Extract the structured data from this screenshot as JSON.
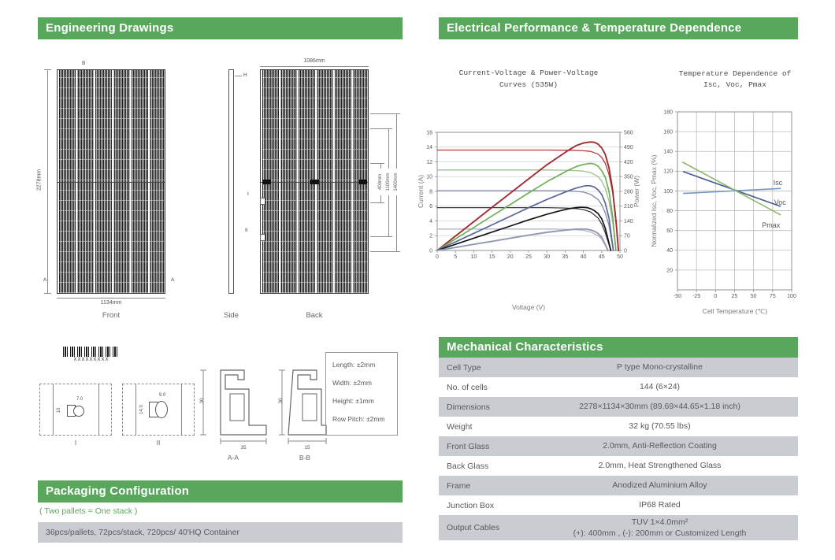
{
  "colors": {
    "brand_green": "#58a75c",
    "row_gray": "#c9cdd2",
    "text_gray": "#58595b"
  },
  "headers": {
    "engineering": "Engineering Drawings",
    "electrical": "Electrical Performance & Temperature Dependence",
    "mechanical": "Mechanical Characteristics"
  },
  "drawings": {
    "front": {
      "label": "Front",
      "height": "2278mm",
      "width": "1134mm",
      "marker_top": "B",
      "marker_bl": "A",
      "marker_br": "A"
    },
    "side": {
      "label": "Side",
      "marker": "H"
    },
    "back": {
      "label": "Back",
      "width": "1086mm",
      "dim1": "400mm",
      "dim2": "1100mm",
      "dim3": "1400mm",
      "marker1": "I",
      "marker2": "II"
    },
    "detail1": {
      "label": "I",
      "dim_w": "7.0",
      "dim_h": "10"
    },
    "detail2": {
      "label": "II",
      "dim_w": "9.0",
      "dim_h": "14.0"
    },
    "section_aa": {
      "label": "A-A",
      "height": "30",
      "width": "35"
    },
    "section_bb": {
      "label": "B-B",
      "height": "30",
      "width": "15"
    },
    "barcode_text": "XXXXXXXXX",
    "tolerances": {
      "l1": "Length: ±2mm",
      "l2": "Width: ±2mm",
      "l3": "Height: ±1mm",
      "l4": "Row Pitch: ±2mm"
    }
  },
  "packaging": {
    "title": "Packaging Configuration",
    "note": "( Two pallets = One stack )",
    "row": "36pcs/pallets, 72pcs/stack, 720pcs/ 40'HQ Container"
  },
  "mechanical_table": {
    "rows": [
      {
        "label": "Cell Type",
        "value": "P type Mono-crystalline"
      },
      {
        "label": "No. of cells",
        "value": "144 (6×24)"
      },
      {
        "label": "Dimensions",
        "value": "2278×1134×30mm (89.69×44.65×1.18 inch)"
      },
      {
        "label": "Weight",
        "value": "32 kg (70.55 lbs)"
      },
      {
        "label": "Front Glass",
        "value": "2.0mm, Anti-Reflection Coating"
      },
      {
        "label": "Back Glass",
        "value": "2.0mm, Heat Strengthened Glass"
      },
      {
        "label": "Frame",
        "value": "Anodized Aluminium Alloy"
      },
      {
        "label": "Junction Box",
        "value": "IP68 Rated"
      },
      {
        "label": "Output Cables",
        "value": "TUV  1×4.0mm²",
        "value2": "(+): 400mm , (-): 200mm or Customized Length"
      }
    ]
  },
  "chart_data": [
    {
      "type": "line",
      "title": "Current-Voltage & Power-Voltage Curves (535W)",
      "title_lines": [
        "Current-Voltage & Power-Voltage",
        "Curves (535W)"
      ],
      "xlabel": "Voltage (V)",
      "ylabel": "Current (A)",
      "y2label": "Power (W)",
      "xlim": [
        0,
        50
      ],
      "ylim": [
        0,
        16
      ],
      "y2lim": [
        0,
        560
      ],
      "xticks": [
        0,
        5,
        10,
        15,
        20,
        25,
        30,
        35,
        40,
        45,
        50
      ],
      "yticks": [
        0,
        2,
        4,
        6,
        8,
        10,
        12,
        14,
        16
      ],
      "y2ticks": [
        0,
        70,
        140,
        210,
        280,
        350,
        420,
        490,
        560
      ],
      "grid": "horizontal",
      "series": [
        {
          "name": "I-V 1",
          "color": "#b8393b",
          "width": 1.3,
          "points": [
            [
              0,
              13.6
            ],
            [
              10,
              13.6
            ],
            [
              20,
              13.6
            ],
            [
              30,
              13.6
            ],
            [
              35,
              13.58
            ],
            [
              38,
              13.55
            ],
            [
              40,
              13.5
            ],
            [
              42,
              13.42
            ],
            [
              44,
              13.05
            ],
            [
              45,
              12.6
            ],
            [
              46,
              11.8
            ],
            [
              47,
              10.3
            ],
            [
              48,
              7.9
            ],
            [
              48.7,
              5.3
            ],
            [
              49.2,
              2.4
            ],
            [
              49.6,
              0
            ]
          ]
        },
        {
          "name": "I-V 2",
          "color": "#9dbe8d",
          "width": 1.3,
          "points": [
            [
              0,
              10.9
            ],
            [
              10,
              10.9
            ],
            [
              20,
              10.9
            ],
            [
              30,
              10.9
            ],
            [
              35,
              10.87
            ],
            [
              38,
              10.82
            ],
            [
              40,
              10.75
            ],
            [
              42,
              10.55
            ],
            [
              44,
              10.0
            ],
            [
              45,
              9.4
            ],
            [
              46,
              8.4
            ],
            [
              47,
              6.7
            ],
            [
              48,
              3.9
            ],
            [
              48.9,
              0
            ]
          ]
        },
        {
          "name": "I-V 3",
          "color": "#7f88ab",
          "width": 1.3,
          "points": [
            [
              0,
              8.1
            ],
            [
              10,
              8.1
            ],
            [
              20,
              8.1
            ],
            [
              30,
              8.1
            ],
            [
              35,
              8.07
            ],
            [
              38,
              8.0
            ],
            [
              40,
              7.9
            ],
            [
              42,
              7.6
            ],
            [
              44,
              6.9
            ],
            [
              45,
              6.2
            ],
            [
              46,
              5.1
            ],
            [
              47,
              3.4
            ],
            [
              48.2,
              0
            ]
          ]
        },
        {
          "name": "I-V 4",
          "color": "#3f3f3f",
          "width": 1.3,
          "points": [
            [
              0,
              5.8
            ],
            [
              10,
              5.8
            ],
            [
              20,
              5.8
            ],
            [
              30,
              5.8
            ],
            [
              35,
              5.75
            ],
            [
              38,
              5.68
            ],
            [
              40,
              5.55
            ],
            [
              42,
              5.2
            ],
            [
              44,
              4.4
            ],
            [
              45,
              3.6
            ],
            [
              46,
              2.4
            ],
            [
              47.5,
              0
            ]
          ]
        },
        {
          "name": "I-V 5",
          "color": "#b2b5c6",
          "width": 1.3,
          "points": [
            [
              0,
              2.9
            ],
            [
              10,
              2.9
            ],
            [
              20,
              2.9
            ],
            [
              30,
              2.9
            ],
            [
              35,
              2.87
            ],
            [
              38,
              2.82
            ],
            [
              40,
              2.72
            ],
            [
              42,
              2.5
            ],
            [
              44,
              2.0
            ],
            [
              45,
              1.55
            ],
            [
              46,
              0.7
            ],
            [
              46.7,
              0
            ]
          ]
        },
        {
          "name": "P-V 1",
          "color": "#a02c30",
          "width": 1.9,
          "points": [
            [
              0,
              0
            ],
            [
              5,
              1.94
            ],
            [
              10,
              3.89
            ],
            [
              15,
              5.83
            ],
            [
              20,
              7.77
            ],
            [
              25,
              9.7
            ],
            [
              30,
              11.6
            ],
            [
              33,
              12.6
            ],
            [
              36,
              13.6
            ],
            [
              38,
              14.2
            ],
            [
              40,
              14.55
            ],
            [
              42,
              14.7
            ],
            [
              43,
              14.65
            ],
            [
              44,
              14.4
            ],
            [
              45,
              13.9
            ],
            [
              46,
              13.0
            ],
            [
              47,
              11.2
            ],
            [
              48,
              8.2
            ],
            [
              49,
              3.5
            ],
            [
              49.6,
              0
            ]
          ]
        },
        {
          "name": "P-V 2",
          "color": "#6fae58",
          "width": 1.7,
          "points": [
            [
              0,
              0
            ],
            [
              5,
              1.56
            ],
            [
              10,
              3.11
            ],
            [
              15,
              4.67
            ],
            [
              20,
              6.23
            ],
            [
              25,
              7.79
            ],
            [
              30,
              9.3
            ],
            [
              33,
              10.1
            ],
            [
              36,
              10.9
            ],
            [
              38,
              11.35
            ],
            [
              40,
              11.65
            ],
            [
              42,
              11.8
            ],
            [
              43,
              11.7
            ],
            [
              44,
              11.4
            ],
            [
              45,
              10.8
            ],
            [
              46,
              9.9
            ],
            [
              47,
              8.0
            ],
            [
              48,
              4.6
            ],
            [
              48.9,
              0
            ]
          ]
        },
        {
          "name": "P-V 3",
          "color": "#5a679c",
          "width": 1.7,
          "points": [
            [
              0,
              0
            ],
            [
              5,
              1.16
            ],
            [
              10,
              2.31
            ],
            [
              15,
              3.47
            ],
            [
              20,
              4.63
            ],
            [
              25,
              5.79
            ],
            [
              30,
              6.9
            ],
            [
              33,
              7.5
            ],
            [
              36,
              8.1
            ],
            [
              38,
              8.45
            ],
            [
              40,
              8.7
            ],
            [
              41,
              8.78
            ],
            [
              42,
              8.75
            ],
            [
              43,
              8.6
            ],
            [
              44,
              8.2
            ],
            [
              45,
              7.6
            ],
            [
              46,
              6.4
            ],
            [
              47,
              4.4
            ],
            [
              48.2,
              0
            ]
          ]
        },
        {
          "name": "P-V 4",
          "color": "#141414",
          "width": 1.7,
          "points": [
            [
              0,
              0
            ],
            [
              5,
              0.83
            ],
            [
              10,
              1.66
            ],
            [
              15,
              2.49
            ],
            [
              20,
              3.31
            ],
            [
              25,
              4.14
            ],
            [
              30,
              4.9
            ],
            [
              33,
              5.3
            ],
            [
              36,
              5.65
            ],
            [
              38,
              5.8
            ],
            [
              39,
              5.85
            ],
            [
              40,
              5.85
            ],
            [
              41,
              5.8
            ],
            [
              42,
              5.65
            ],
            [
              43,
              5.4
            ],
            [
              44,
              5.0
            ],
            [
              45,
              4.3
            ],
            [
              46,
              3.0
            ],
            [
              47.5,
              0
            ]
          ]
        },
        {
          "name": "P-V 5",
          "color": "#9298b3",
          "width": 1.9,
          "points": [
            [
              0,
              0
            ],
            [
              5,
              0.41
            ],
            [
              10,
              0.83
            ],
            [
              15,
              1.24
            ],
            [
              20,
              1.66
            ],
            [
              25,
              2.07
            ],
            [
              30,
              2.45
            ],
            [
              33,
              2.63
            ],
            [
              36,
              2.8
            ],
            [
              38,
              2.88
            ],
            [
              39,
              2.9
            ],
            [
              40,
              2.9
            ],
            [
              41,
              2.87
            ],
            [
              42,
              2.78
            ],
            [
              43,
              2.6
            ],
            [
              44,
              2.3
            ],
            [
              45,
              1.8
            ],
            [
              46,
              0.8
            ],
            [
              46.7,
              0
            ]
          ]
        }
      ]
    },
    {
      "type": "line",
      "title": "Temperature Dependence of Isc, Voc, Pmax",
      "title_lines": [
        "Temperature Dependence of",
        "Isc, Voc, Pmax"
      ],
      "xlabel": "Cell Temperature (℃)",
      "ylabel": "Normalized Isc, Voc, Pmax (%)",
      "xlim": [
        -50,
        100
      ],
      "ylim": [
        0,
        180
      ],
      "xticks": [
        -50,
        -25,
        0,
        25,
        50,
        75,
        100
      ],
      "yticks": [
        20,
        40,
        60,
        80,
        100,
        120,
        140,
        160,
        180
      ],
      "grid": "both",
      "series": [
        {
          "name": "Isc",
          "color": "#7596c8",
          "width": 1.6,
          "points": [
            [
              -42,
              97.5
            ],
            [
              85,
              102.5
            ]
          ]
        },
        {
          "name": "Voc",
          "color": "#46598f",
          "width": 1.6,
          "points": [
            [
              -42,
              119.5
            ],
            [
              85,
              84.5
            ]
          ]
        },
        {
          "name": "Pmax",
          "color": "#8cb968",
          "width": 1.6,
          "points": [
            [
              -43,
              129
            ],
            [
              85,
              76
            ]
          ]
        }
      ],
      "annotations": [
        {
          "text": "Isc",
          "x": 76,
          "y": 106
        },
        {
          "text": "Voc",
          "x": 77,
          "y": 86
        },
        {
          "text": "Pmax",
          "x": 61,
          "y": 63
        }
      ]
    }
  ]
}
